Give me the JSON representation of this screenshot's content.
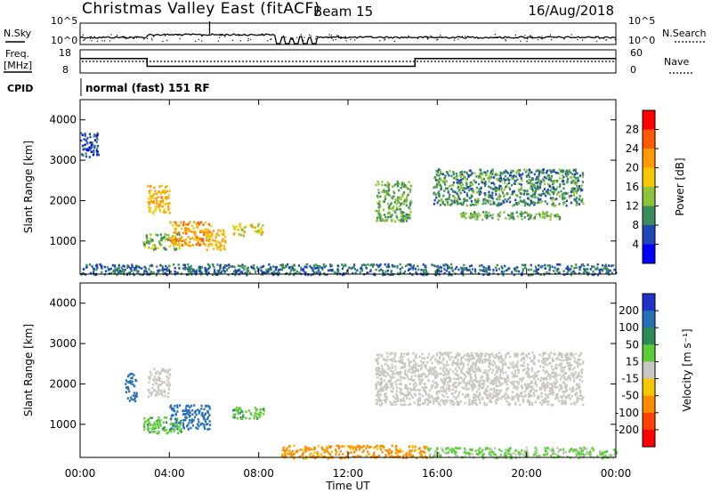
{
  "header": {
    "title": "Christmas Valley East (fitACF)",
    "beam": "Beam 15",
    "date": "16/Aug/2018"
  },
  "noise_panel": {
    "left_label": "N.Sky",
    "left_ticks": [
      "10^5",
      "10^0"
    ],
    "right_label": "N.Search",
    "right_ticks": [
      "10^5",
      "10^0"
    ]
  },
  "freq_panel": {
    "left_label_1": "Freq.",
    "left_label_2": "[MHz]",
    "left_ticks": [
      "18",
      "8"
    ],
    "right_label": "Nave",
    "right_ticks": [
      "60",
      "0"
    ]
  },
  "cpid": {
    "label": "CPID",
    "text": "normal (fast) 151 RF"
  },
  "power_panel": {
    "ylabel": "Slant Range [km]",
    "yticks": [
      "4000",
      "3000",
      "2000",
      "1000"
    ],
    "colorbar_label": "Power [dB]",
    "colorbar_ticks": [
      "28",
      "24",
      "20",
      "16",
      "12",
      "8",
      "4"
    ],
    "colorbar_colors": [
      "#ff0000",
      "#ff5a00",
      "#ff9a00",
      "#f5c800",
      "#8ec43c",
      "#3a8c5a",
      "#1e46b4",
      "#0000ff"
    ]
  },
  "velocity_panel": {
    "ylabel": "Slant Range [km]",
    "yticks": [
      "4000",
      "3000",
      "2000",
      "1000"
    ],
    "colorbar_label": "Velocity [m s⁻¹]",
    "colorbar_ticks": [
      "200",
      "100",
      "50",
      "15",
      "-15",
      "-50",
      "-100",
      "-200"
    ],
    "colorbar_colors": [
      "#1e32c8",
      "#2870b4",
      "#2e8b57",
      "#5ccc3a",
      "#c8c8c0",
      "#f5c800",
      "#ff8c00",
      "#ff4000",
      "#ff0000"
    ]
  },
  "time_axis": {
    "xlabel": "Time UT",
    "ticks": [
      "00:00",
      "04:00",
      "08:00",
      "12:00",
      "16:00",
      "20:00",
      "00:00"
    ]
  },
  "chart_data": {
    "type": "heatmap",
    "title": "Christmas Valley East (fitACF)",
    "subtitle": "Beam 15",
    "date": "16/Aug/2018",
    "x_range_hours": [
      0,
      24
    ],
    "y_range_km": [
      180,
      4500
    ],
    "freq_mhz_steps": [
      {
        "from": 0.0,
        "to": 3.0,
        "value": 14.5
      },
      {
        "from": 3.0,
        "to": 15.0,
        "value": 10.5
      },
      {
        "from": 15.0,
        "to": 24.0,
        "value": 14.5
      }
    ],
    "nave_level": 30,
    "power_regions": [
      {
        "t0": 0.0,
        "t1": 0.8,
        "r0": 3100,
        "r1": 3700,
        "level_db": 6
      },
      {
        "t0": 3.0,
        "t1": 4.0,
        "r0": 1700,
        "r1": 2400,
        "level_db": 20
      },
      {
        "t0": 2.8,
        "t1": 4.5,
        "r0": 800,
        "r1": 1200,
        "level_db": 14
      },
      {
        "t0": 4.0,
        "t1": 5.8,
        "r0": 900,
        "r1": 1500,
        "level_db": 22
      },
      {
        "t0": 5.6,
        "t1": 6.5,
        "r0": 800,
        "r1": 1300,
        "level_db": 20
      },
      {
        "t0": 6.8,
        "t1": 7.4,
        "r0": 1150,
        "r1": 1450,
        "level_db": 18
      },
      {
        "t0": 7.6,
        "t1": 8.2,
        "r0": 1150,
        "r1": 1450,
        "level_db": 18
      },
      {
        "t0": 13.2,
        "t1": 14.8,
        "r0": 1500,
        "r1": 2500,
        "level_db": 12
      },
      {
        "t0": 15.8,
        "t1": 22.5,
        "r0": 1900,
        "r1": 2800,
        "level_db": 10
      },
      {
        "t0": 17.0,
        "t1": 21.5,
        "r0": 1550,
        "r1": 1750,
        "level_db": 12
      },
      {
        "t0": 0.0,
        "t1": 24.0,
        "r0": 180,
        "r1": 450,
        "level_db": 8
      }
    ],
    "velocity_regions": [
      {
        "t0": 2.0,
        "t1": 2.5,
        "r0": 1600,
        "r1": 2300,
        "velocity": 150
      },
      {
        "t0": 3.0,
        "t1": 4.0,
        "r0": 1700,
        "r1": 2400,
        "velocity": 0
      },
      {
        "t0": 4.0,
        "t1": 5.8,
        "r0": 900,
        "r1": 1500,
        "velocity": 150
      },
      {
        "t0": 2.8,
        "t1": 4.5,
        "r0": 800,
        "r1": 1200,
        "velocity": 40
      },
      {
        "t0": 6.8,
        "t1": 8.2,
        "r0": 1150,
        "r1": 1450,
        "velocity": 40
      },
      {
        "t0": 13.2,
        "t1": 22.5,
        "r0": 1500,
        "r1": 2800,
        "velocity": 0
      },
      {
        "t0": 9.0,
        "t1": 15.5,
        "r0": 180,
        "r1": 500,
        "velocity": -60
      },
      {
        "t0": 15.5,
        "t1": 24.0,
        "r0": 180,
        "r1": 450,
        "velocity": 20
      }
    ]
  }
}
